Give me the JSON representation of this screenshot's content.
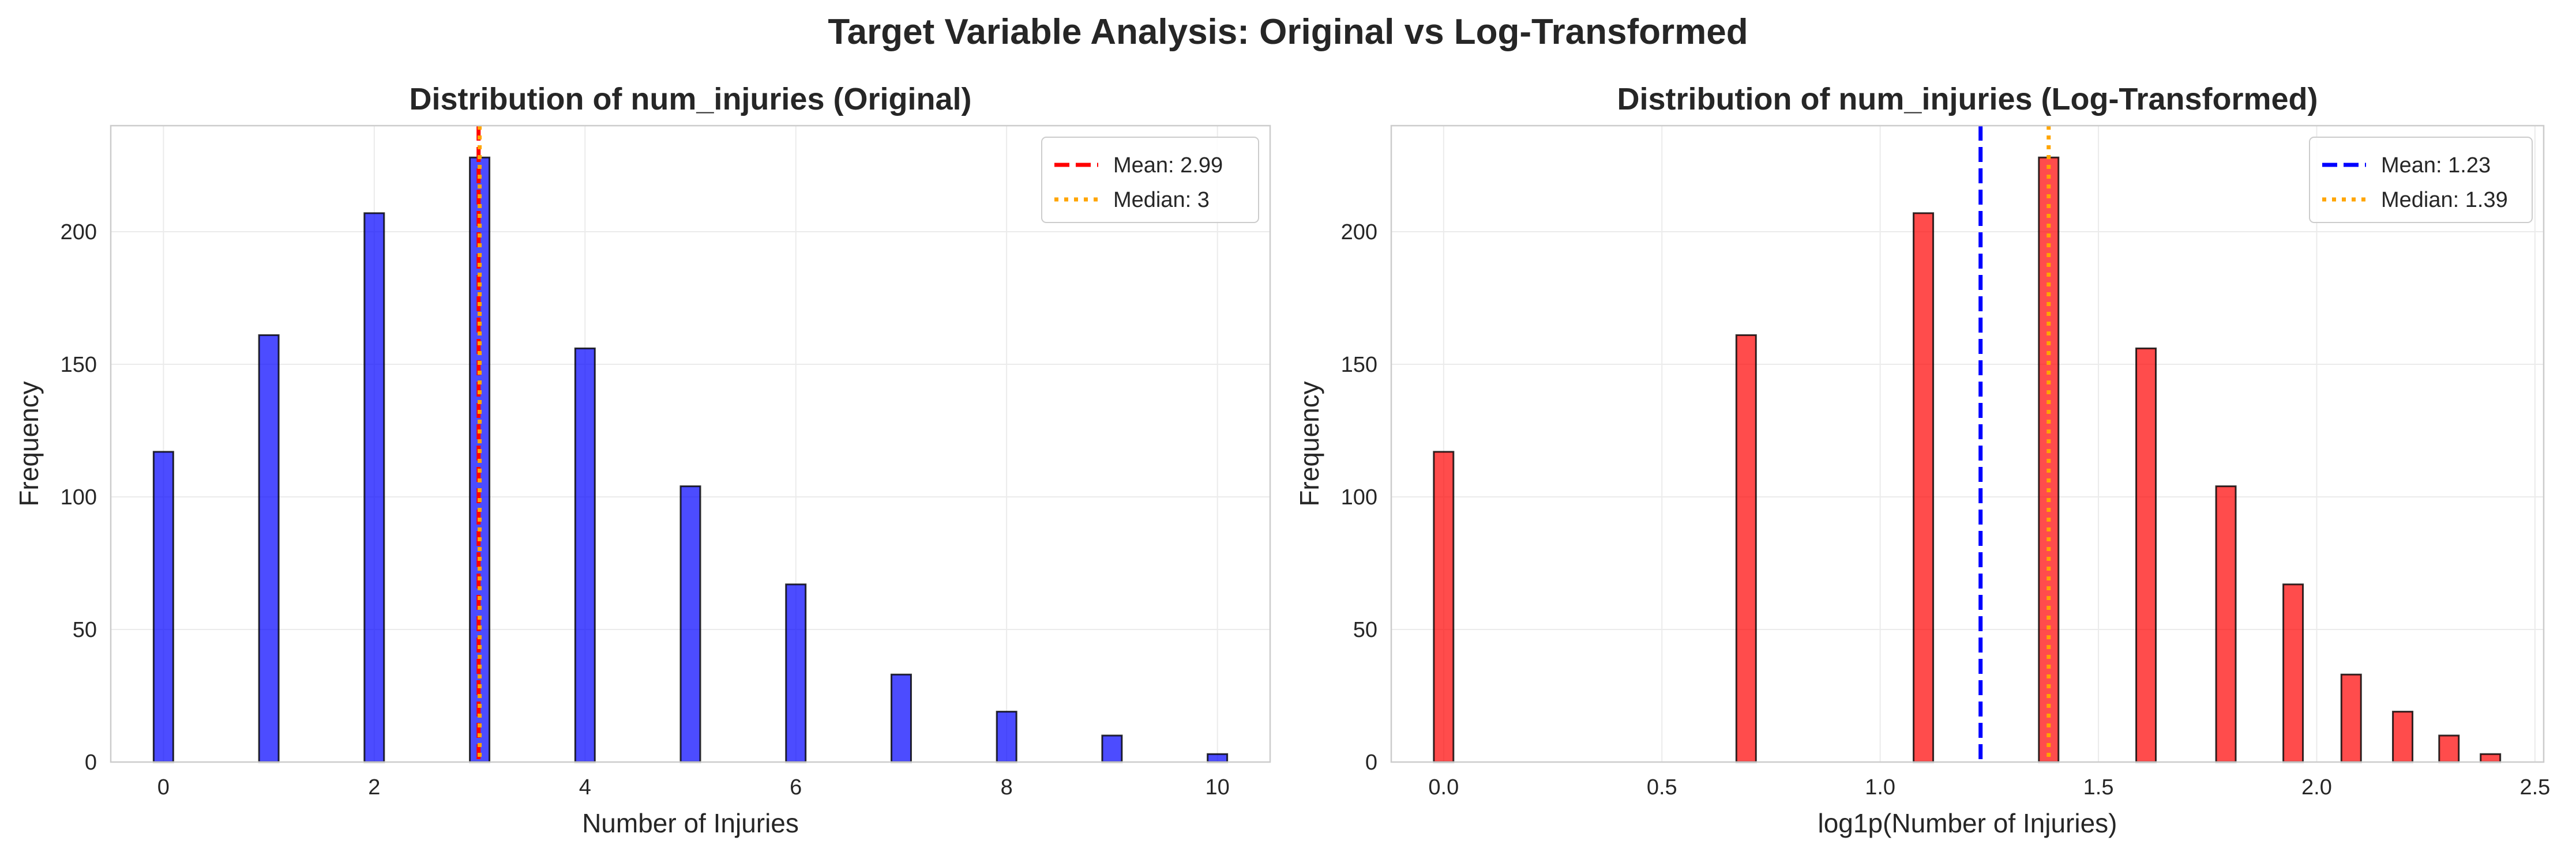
{
  "figure": {
    "title": "Target Variable Analysis: Original vs Log-Transformed"
  },
  "chart_data": [
    {
      "type": "bar",
      "title": "Distribution of num_injuries (Original)",
      "xlabel": "Number of Injuries",
      "ylabel": "Frequency",
      "xlim": [
        -0.5,
        10.5
      ],
      "ylim": [
        0,
        240
      ],
      "xticks": [
        0,
        2,
        4,
        6,
        8,
        10
      ],
      "xtick_labels": [
        "0",
        "2",
        "4",
        "6",
        "8",
        "10"
      ],
      "yticks": [
        0,
        50,
        100,
        150,
        200
      ],
      "grid": true,
      "legend_position": "top-right",
      "bar_color": "#0000ff",
      "bar_x": [
        0,
        1,
        2,
        3,
        4,
        5,
        6,
        7,
        8,
        9,
        10
      ],
      "values": [
        117,
        161,
        207,
        228,
        156,
        104,
        67,
        33,
        19,
        10,
        3
      ],
      "mean_line": {
        "label": "Mean: 2.99",
        "value": 2.99,
        "color": "#ff0000",
        "style": "dashed"
      },
      "median_line": {
        "label": "Median: 3",
        "value": 3,
        "color": "#ffa500",
        "style": "dotted"
      }
    },
    {
      "type": "bar",
      "title": "Distribution of num_injuries (Log-Transformed)",
      "xlabel": "log1p(Number of Injuries)",
      "ylabel": "Frequency",
      "xlim": [
        -0.12,
        2.52
      ],
      "ylim": [
        0,
        240
      ],
      "xticks": [
        0,
        0.5,
        1,
        1.5,
        2,
        2.5
      ],
      "xtick_labels": [
        "0.0",
        "0.5",
        "1.0",
        "1.5",
        "2.0",
        "2.5"
      ],
      "yticks": [
        0,
        50,
        100,
        150,
        200
      ],
      "grid": true,
      "legend_position": "top-right",
      "bar_color": "#ff0000",
      "bar_x": [
        0,
        0.693,
        1.099,
        1.386,
        1.609,
        1.792,
        1.946,
        2.079,
        2.197,
        2.303,
        2.398
      ],
      "values": [
        117,
        161,
        207,
        228,
        156,
        104,
        67,
        33,
        19,
        10,
        3
      ],
      "mean_line": {
        "label": "Mean: 1.23",
        "value": 1.23,
        "color": "#0000ff",
        "style": "dashed"
      },
      "median_line": {
        "label": "Median: 1.39",
        "value": 1.386,
        "color": "#ffa500",
        "style": "dotted"
      }
    }
  ]
}
